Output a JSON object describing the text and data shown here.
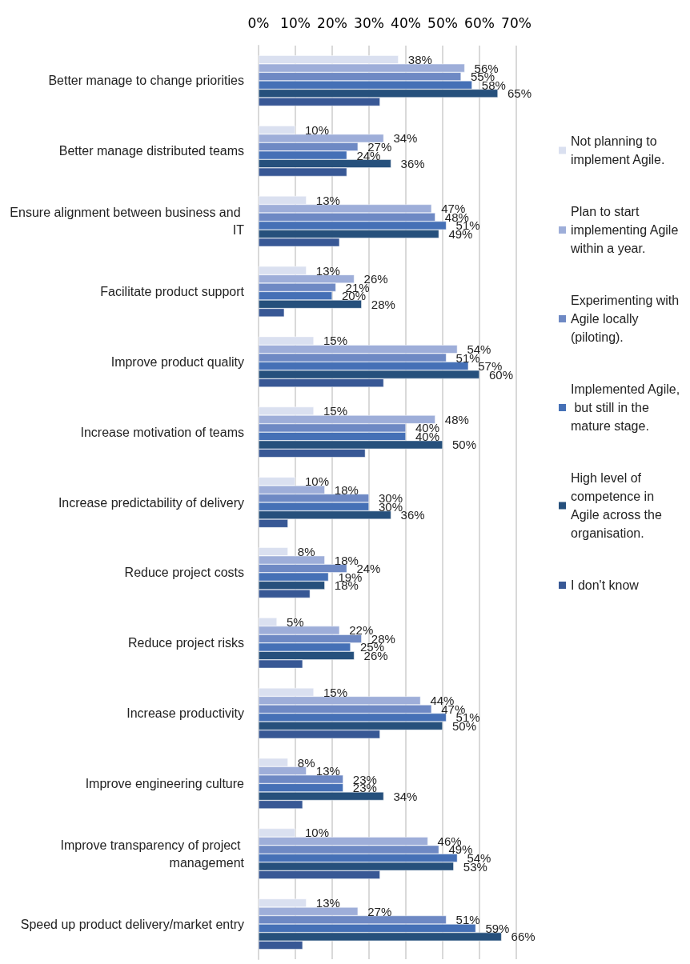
{
  "chart_data": {
    "type": "bar",
    "orientation": "horizontal",
    "categories": [
      "Better manage to change priorities",
      "Better manage distributed teams",
      "Ensure alignment between business and IT",
      "Facilitate product support",
      "Improve product quality",
      "Increase motivation of teams",
      "Increase predictability of delivery",
      "Reduce project costs",
      "Reduce project risks",
      "Increase productivity",
      "Improve engineering culture",
      "Improve transparency of project management",
      "Speed up product delivery/market entry"
    ],
    "series": [
      {
        "name": "Not planning to implement Agile.",
        "color": "#dae0f0",
        "values": [
          38,
          10,
          13,
          13,
          15,
          15,
          10,
          8,
          5,
          15,
          8,
          10,
          13
        ],
        "value_labels": [
          "38%",
          "10%",
          "13%",
          "13%",
          "15%",
          "15%",
          "10%",
          "8%",
          "5%",
          "15%",
          "8%",
          "10%",
          "13%"
        ]
      },
      {
        "name": "Plan to start implementing Agile within a year.",
        "color": "#9eaed9",
        "values": [
          56,
          34,
          47,
          26,
          54,
          48,
          18,
          18,
          22,
          44,
          13,
          46,
          27
        ],
        "value_labels": [
          "56%",
          "34%",
          "47%",
          "26%",
          "54%",
          "48%",
          "18%",
          "18%",
          "22%",
          "44%",
          "13%",
          "46%",
          "27%"
        ]
      },
      {
        "name": "Experimenting with Agile locally (piloting).",
        "color": "#6e89c4",
        "values": [
          55,
          27,
          48,
          21,
          51,
          40,
          30,
          24,
          28,
          47,
          23,
          49,
          51
        ],
        "value_labels": [
          "55%",
          "27%",
          "48%",
          "21%",
          "51%",
          "40%",
          "30%",
          "24%",
          "28%",
          "47%",
          "23%",
          "49%",
          "51%"
        ]
      },
      {
        "name": "Implemented Agile, but still in the mature stage.",
        "color": "#4570b6",
        "values": [
          58,
          24,
          51,
          20,
          57,
          40,
          30,
          19,
          25,
          51,
          23,
          54,
          59
        ],
        "value_labels": [
          "58%",
          "24%",
          "51%",
          "20%",
          "57%",
          "40%",
          "30%",
          "19%",
          "25%",
          "51%",
          "23%",
          "54%",
          "59%"
        ]
      },
      {
        "name": "High level of competence in Agile across the organisation.",
        "color": "#26507c",
        "values": [
          65,
          36,
          49,
          28,
          60,
          50,
          36,
          18,
          26,
          50,
          34,
          53,
          66
        ],
        "value_labels": [
          "65%",
          "36%",
          "49%",
          "28%",
          "60%",
          "50%",
          "36%",
          "18%",
          "26%",
          "50%",
          "34%",
          "53%",
          "66%"
        ]
      },
      {
        "name": "I don't know",
        "color": "#385895",
        "values": [
          33,
          24,
          22,
          7,
          34,
          29,
          8,
          14,
          12,
          33,
          12,
          33,
          12
        ]
      }
    ],
    "xlim": [
      0,
      70
    ],
    "xticks": [
      {
        "value": 0,
        "label": "0%"
      },
      {
        "value": 10,
        "label": "10%"
      },
      {
        "value": 20,
        "label": "20%"
      },
      {
        "value": 30,
        "label": "30%"
      },
      {
        "value": 40,
        "label": "40%"
      },
      {
        "value": 50,
        "label": "50%"
      },
      {
        "value": 60,
        "label": "60%"
      },
      {
        "value": 70,
        "label": "70%"
      }
    ],
    "grid": "x",
    "legend": "right"
  }
}
